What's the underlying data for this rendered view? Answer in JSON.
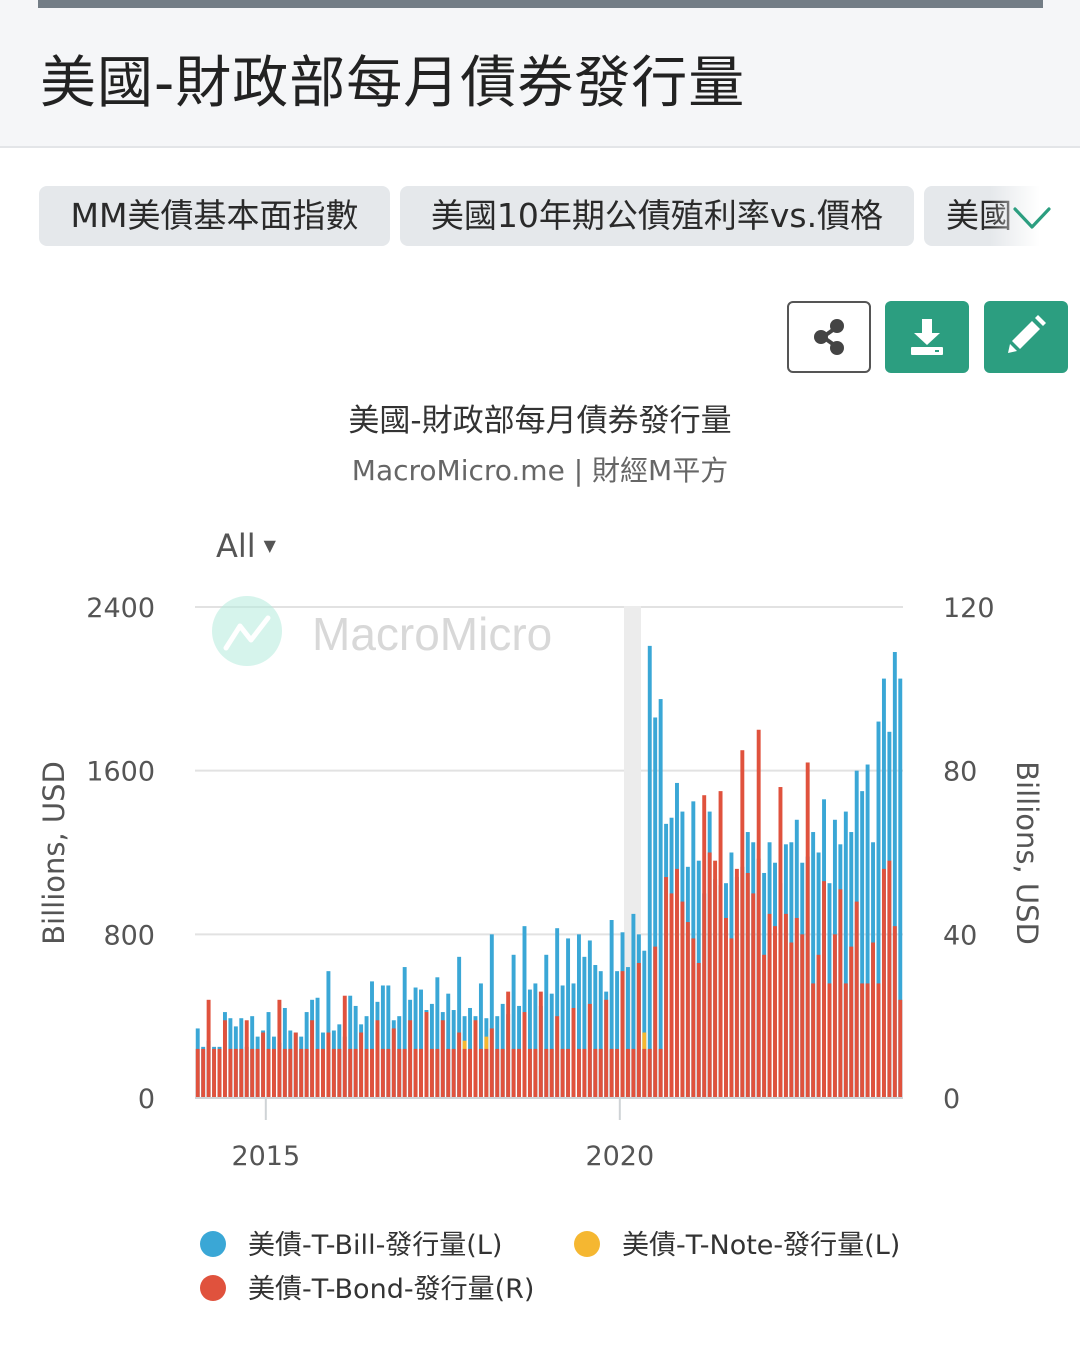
{
  "page": {
    "title": "美國-財政部每月債券發行量"
  },
  "tabs": [
    {
      "label": "MM美債基本面指數"
    },
    {
      "label": "美國10年期公債殖利率vs.價格"
    },
    {
      "label": "美國"
    }
  ],
  "toolbar": {
    "share_icon": "share-icon",
    "download_icon": "download-icon",
    "edit_icon": "pencil-icon"
  },
  "range_selector": {
    "label": "All"
  },
  "watermark": {
    "text": "MacroMicro"
  },
  "colors": {
    "bill": "#3aa7d6",
    "note": "#f5b731",
    "bond": "#e0523d",
    "accent": "#2c9e80"
  },
  "chart_data": {
    "type": "bar",
    "title": "美國-財政部每月債券發行量",
    "subtitle": "MacroMicro.me | 財經M平方",
    "x_range": [
      "2014-01",
      "2024-01"
    ],
    "x_ticks": [
      "2015",
      "2020"
    ],
    "y_left": {
      "label": "Billions, USD",
      "ticks": [
        "0",
        "800",
        "1600",
        "2400"
      ],
      "range": [
        0,
        2400
      ]
    },
    "y_right": {
      "label": "Billions, USD",
      "ticks": [
        "0",
        "40",
        "80",
        "120"
      ],
      "range": [
        0,
        120
      ]
    },
    "grid": true,
    "legend_position": "bottom",
    "series": [
      {
        "name": "美債-T-Bill-發行量(L)",
        "axis": "left",
        "color": "#3aa7d6",
        "values": [
          340,
          250,
          280,
          250,
          250,
          420,
          390,
          350,
          390,
          250,
          400,
          300,
          330,
          420,
          300,
          270,
          440,
          330,
          320,
          300,
          420,
          480,
          490,
          320,
          620,
          330,
          360,
          300,
          500,
          450,
          360,
          400,
          570,
          470,
          550,
          550,
          380,
          400,
          640,
          480,
          540,
          530,
          430,
          460,
          590,
          420,
          510,
          430,
          690,
          400,
          440,
          400,
          560,
          390,
          800,
          400,
          460,
          410,
          700,
          450,
          840,
          530,
          560,
          450,
          700,
          510,
          830,
          550,
          780,
          560,
          800,
          690,
          770,
          650,
          620,
          520,
          870,
          620,
          810,
          640,
          900,
          800,
          720,
          2210,
          1860,
          1950,
          1340,
          1370,
          1540,
          1400,
          1130,
          1450,
          1160,
          1000,
          1400,
          1070,
          1040,
          1050,
          1200,
          1080,
          1130,
          1300,
          1250,
          1170,
          1100,
          1250,
          1150,
          1050,
          1240,
          1250,
          1360,
          1150,
          1180,
          1300,
          1200,
          1460,
          1050,
          1360,
          1240,
          1400,
          1300,
          1600,
          1500,
          1630,
          1250,
          1840,
          2050,
          1790,
          2180,
          2050
        ]
      },
      {
        "name": "美債-T-Note-發行量(L)",
        "axis": "left",
        "color": "#f5b731",
        "values": [
          0,
          0,
          0,
          0,
          0,
          0,
          0,
          0,
          0,
          0,
          0,
          0,
          0,
          0,
          0,
          0,
          0,
          0,
          0,
          0,
          0,
          0,
          0,
          0,
          0,
          0,
          0,
          0,
          0,
          0,
          0,
          0,
          0,
          0,
          0,
          0,
          0,
          0,
          0,
          0,
          0,
          0,
          0,
          0,
          0,
          0,
          0,
          0,
          0,
          280,
          0,
          0,
          0,
          300,
          0,
          0,
          0,
          0,
          0,
          0,
          0,
          0,
          0,
          0,
          0,
          0,
          0,
          0,
          0,
          0,
          0,
          0,
          0,
          0,
          0,
          0,
          0,
          0,
          0,
          0,
          0,
          0,
          320,
          0,
          0,
          0,
          0,
          0,
          0,
          0,
          0,
          0,
          0,
          0,
          0,
          0,
          0,
          0,
          0,
          0,
          0,
          0,
          0,
          0,
          0,
          0,
          0,
          0,
          0,
          0,
          0,
          0,
          0,
          0,
          0,
          0,
          0,
          0,
          0,
          0,
          0,
          0,
          0,
          0,
          0,
          0,
          0,
          0,
          0,
          0
        ]
      },
      {
        "name": "美債-T-Bond-發行量(R)",
        "axis": "right",
        "color": "#e0523d",
        "values": [
          12,
          12,
          24,
          12,
          12,
          19,
          12,
          12,
          12,
          19,
          12,
          12,
          16,
          12,
          12,
          24,
          12,
          12,
          16,
          12,
          12,
          19,
          12,
          12,
          16,
          12,
          12,
          25,
          12,
          12,
          16,
          12,
          12,
          19,
          12,
          12,
          17,
          12,
          12,
          19,
          12,
          12,
          21,
          12,
          12,
          19,
          12,
          12,
          16,
          12,
          12,
          19,
          12,
          12,
          17,
          12,
          12,
          26,
          12,
          12,
          21,
          12,
          12,
          26,
          12,
          12,
          20,
          12,
          12,
          22,
          12,
          12,
          23,
          12,
          12,
          24,
          12,
          12,
          31,
          12,
          12,
          33,
          12,
          12,
          37,
          12,
          54,
          50,
          56,
          48,
          43,
          39,
          33,
          74,
          60,
          58,
          75,
          44,
          39,
          56,
          85,
          55,
          50,
          90,
          35,
          45,
          42,
          76,
          45,
          38,
          44,
          40,
          82,
          28,
          35,
          53,
          28,
          40,
          51,
          28,
          37,
          48,
          28,
          28,
          38,
          28,
          56,
          58,
          42,
          24,
          38
        ]
      }
    ]
  },
  "legend": [
    {
      "label": "美債-T-Bill-發行量(L)",
      "color": "#3aa7d6"
    },
    {
      "label": "美債-T-Note-發行量(L)",
      "color": "#f5b731"
    },
    {
      "label": "美債-T-Bond-發行量(R)",
      "color": "#e0523d"
    }
  ]
}
